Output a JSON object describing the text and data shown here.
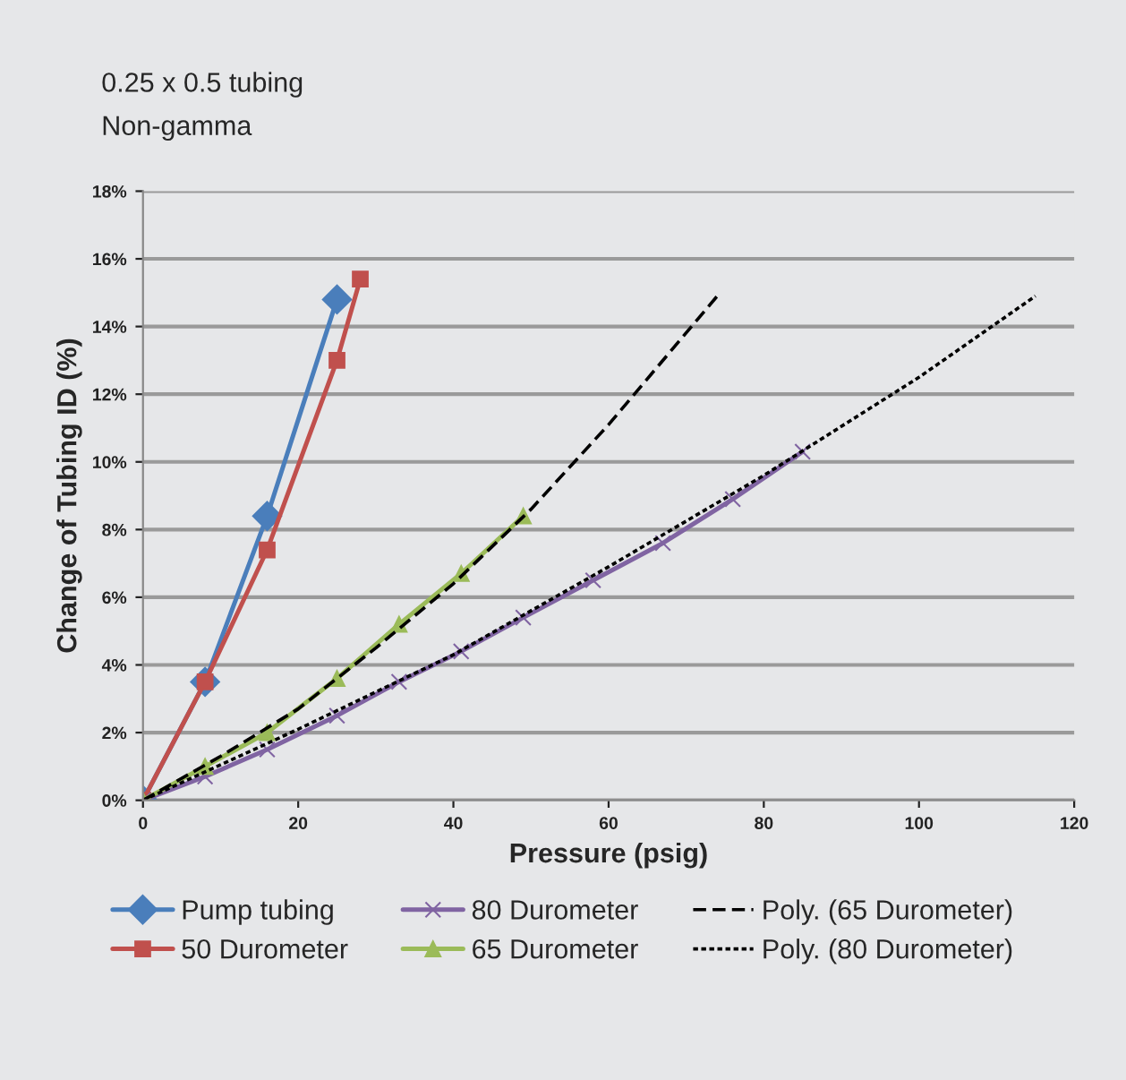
{
  "chart_data": {
    "type": "line",
    "title": "0.25 x 0.5 tubing",
    "subtitle": "Non-gamma",
    "xlabel": "Pressure (psig)",
    "ylabel": "Change of Tubing ID (%)",
    "xlim": [
      0,
      120
    ],
    "xticks": [
      0,
      20,
      40,
      60,
      80,
      100,
      120
    ],
    "ylim": [
      0,
      18
    ],
    "yticks": [
      {
        "value": 0,
        "label": "0%"
      },
      {
        "value": 2,
        "label": "2%"
      },
      {
        "value": 4,
        "label": "4%"
      },
      {
        "value": 6,
        "label": "6%"
      },
      {
        "value": 8,
        "label": "8%"
      },
      {
        "value": 10,
        "label": "10%"
      },
      {
        "value": 12,
        "label": "12%"
      },
      {
        "value": 14,
        "label": "14%"
      },
      {
        "value": 16,
        "label": "16%"
      },
      {
        "value": 18,
        "label": "18%"
      }
    ],
    "grid": "y",
    "legend": "bottom",
    "series": [
      {
        "name": "Pump tubing",
        "color": "#4a7ebb",
        "marker": "diamond",
        "line_style": "solid",
        "x": [
          0,
          8,
          16,
          25
        ],
        "values": [
          0,
          3.5,
          8.4,
          14.8
        ]
      },
      {
        "name": "50 Durometer",
        "color": "#c0504d",
        "marker": "square",
        "line_style": "solid",
        "x": [
          0,
          8,
          16,
          25,
          28
        ],
        "values": [
          0,
          3.5,
          7.4,
          13.0,
          15.4
        ]
      },
      {
        "name": "80 Durometer",
        "color": "#8064a2",
        "marker": "cross",
        "line_style": "solid",
        "x": [
          0,
          8,
          16,
          25,
          33,
          41,
          49,
          58,
          67,
          76,
          85
        ],
        "values": [
          0,
          0.7,
          1.5,
          2.5,
          3.5,
          4.4,
          5.4,
          6.5,
          7.6,
          8.9,
          10.3
        ]
      },
      {
        "name": "65 Durometer",
        "color": "#9bbb59",
        "marker": "triangle",
        "line_style": "solid",
        "x": [
          0,
          8,
          16,
          25,
          33,
          41,
          49
        ],
        "values": [
          0,
          1.0,
          2.0,
          3.6,
          5.2,
          6.7,
          8.4
        ]
      },
      {
        "name": "Poly. (65 Durometer)",
        "color": "#000000",
        "marker": "none",
        "line_style": "dashed",
        "x": [
          0,
          10,
          20,
          30,
          40,
          50,
          60,
          74
        ],
        "values": [
          0,
          1.3,
          2.7,
          4.5,
          6.4,
          8.6,
          11.1,
          14.9
        ]
      },
      {
        "name": "Poly. (80 Durometer)",
        "color": "#000000",
        "marker": "none",
        "line_style": "dotted",
        "x": [
          0,
          20,
          40,
          60,
          80,
          100,
          115
        ],
        "values": [
          0,
          2.1,
          4.3,
          6.9,
          9.6,
          12.5,
          14.9
        ]
      }
    ]
  }
}
